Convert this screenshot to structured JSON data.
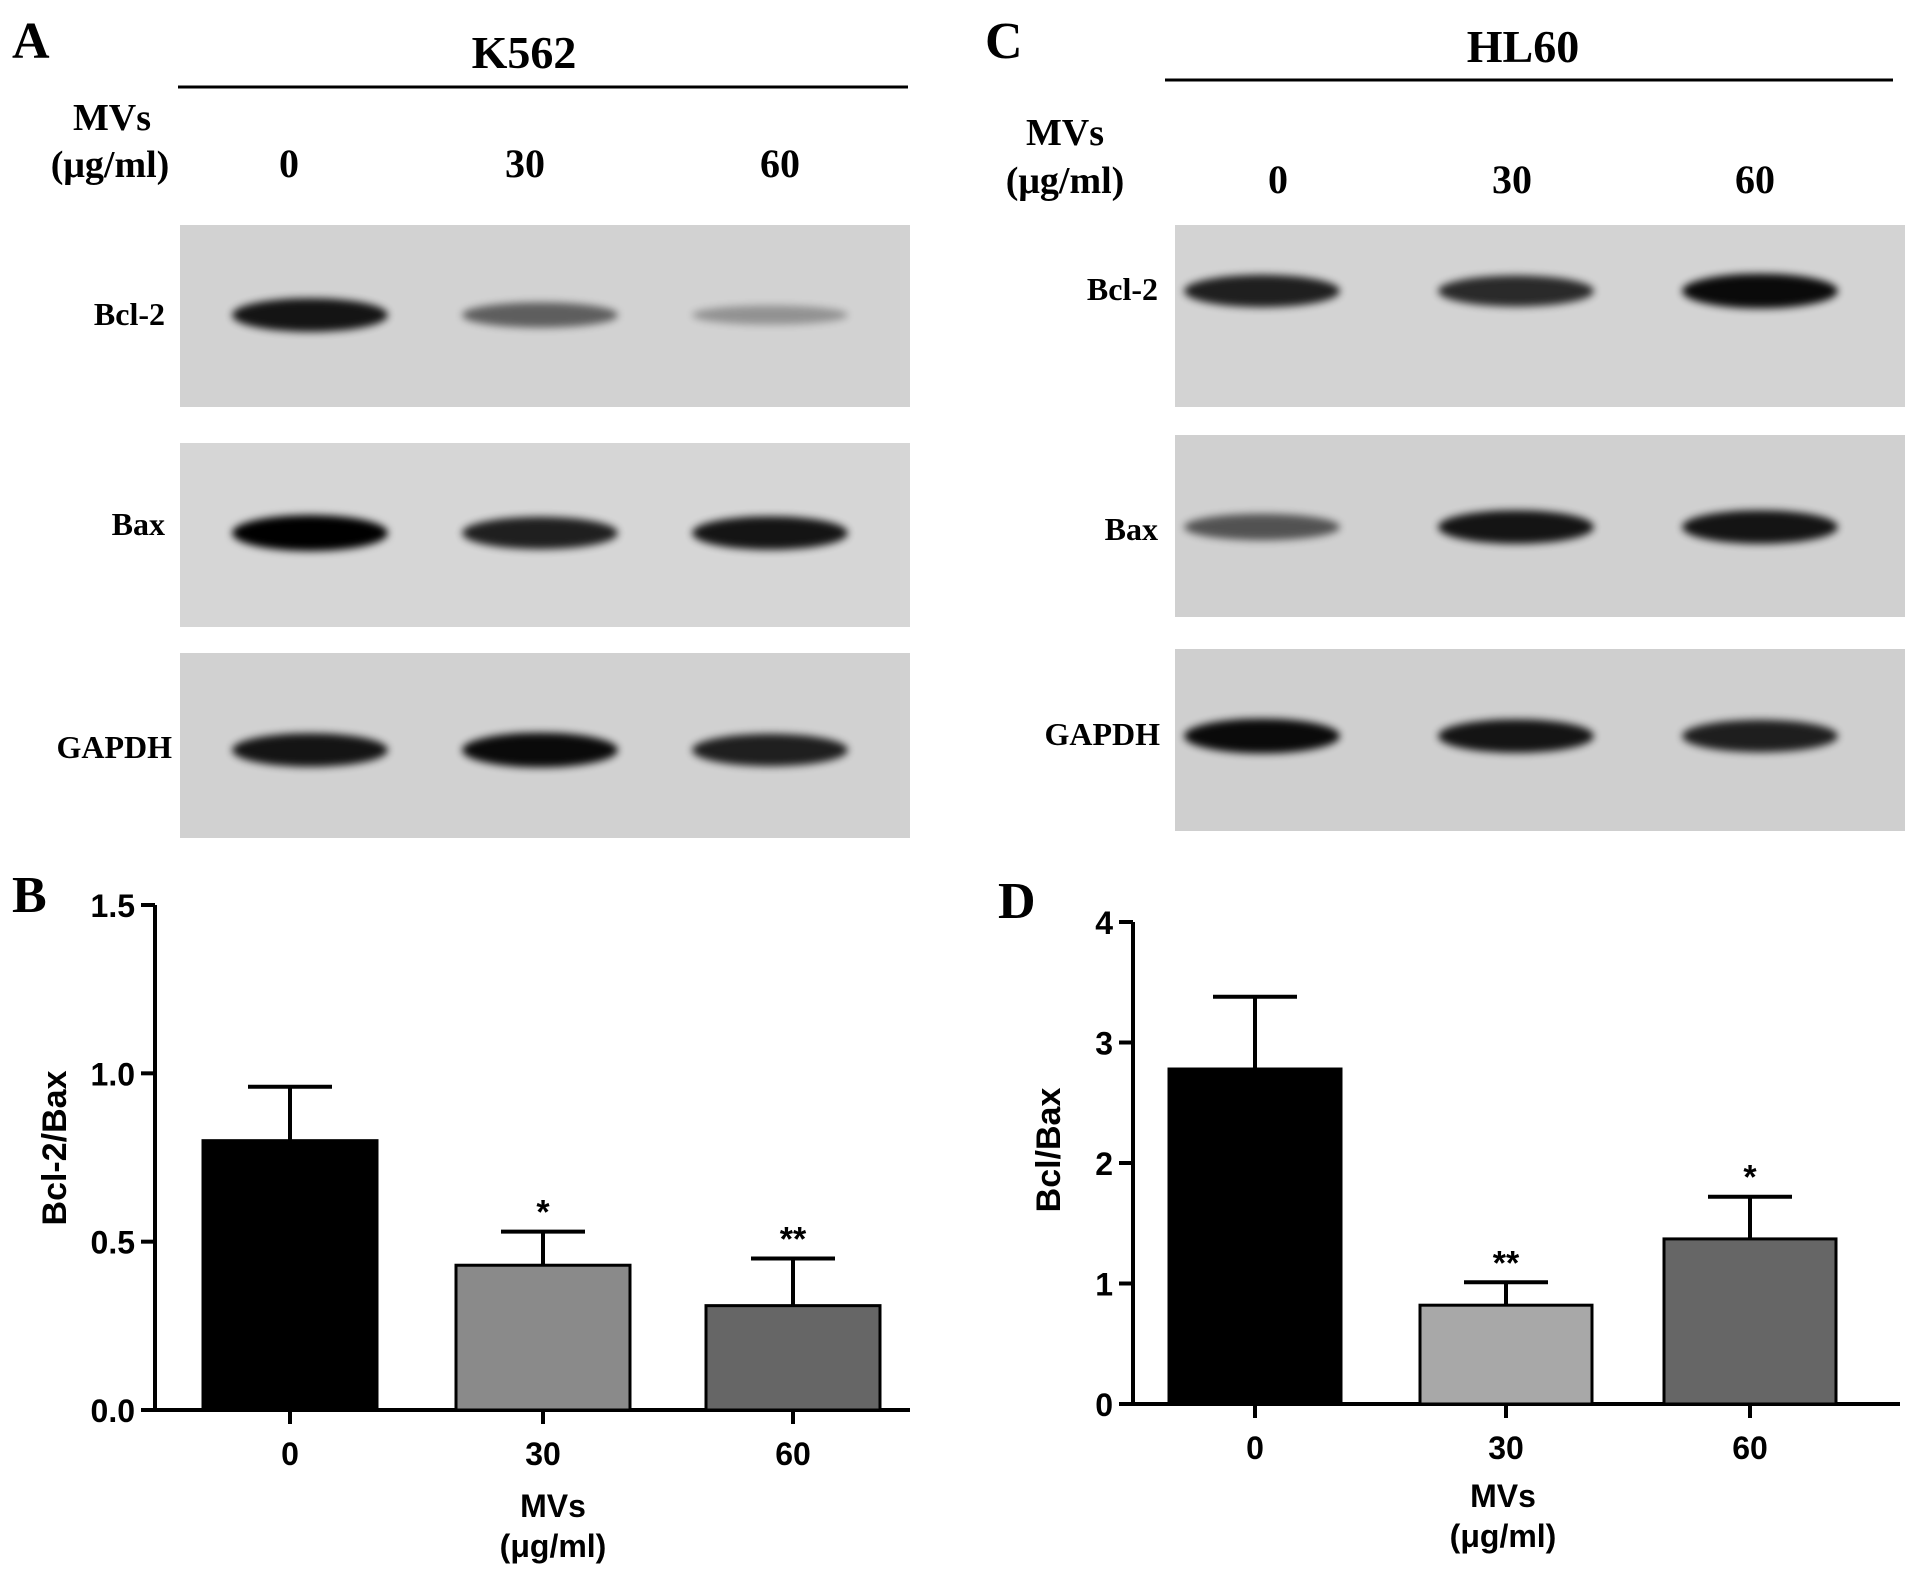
{
  "panels": {
    "A": {
      "letter": "A",
      "cell_line": "K562",
      "mvs_label_line1": "MVs",
      "mvs_label_line2": "(μg/ml)",
      "doses": [
        "0",
        "30",
        "60"
      ],
      "blots": [
        {
          "protein": "Bcl-2",
          "band_intensity": [
            0.9,
            0.55,
            0.3
          ]
        },
        {
          "protein": "Bax",
          "band_intensity": [
            1.0,
            0.85,
            0.9
          ]
        },
        {
          "protein": "GAPDH",
          "band_intensity": [
            0.9,
            0.95,
            0.85
          ]
        }
      ]
    },
    "C": {
      "letter": "C",
      "cell_line": "HL60",
      "mvs_label_line1": "MVs",
      "mvs_label_line2": "(μg/ml)",
      "doses": [
        "0",
        "30",
        "60"
      ],
      "blots": [
        {
          "protein": "Bcl-2",
          "band_intensity": [
            0.85,
            0.8,
            0.95
          ]
        },
        {
          "protein": "Bax",
          "band_intensity": [
            0.6,
            0.9,
            0.9
          ]
        },
        {
          "protein": "GAPDH",
          "band_intensity": [
            0.95,
            0.9,
            0.85
          ]
        }
      ]
    }
  },
  "chart_data": [
    {
      "panel": "B",
      "type": "bar",
      "categories": [
        "0",
        "30",
        "60"
      ],
      "values": [
        0.8,
        0.43,
        0.31
      ],
      "errors": [
        0.16,
        0.1,
        0.14
      ],
      "significance": [
        "",
        "*",
        "**"
      ],
      "bar_colors": [
        "#000000",
        "#8a8a8a",
        "#666666"
      ],
      "xlabel_line1": "MVs",
      "xlabel_line2": "(μg/ml)",
      "ylabel": "Bcl-2/Bax",
      "ylim": [
        0,
        1.5
      ],
      "yticks": [
        "0.0",
        "0.5",
        "1.0",
        "1.5"
      ]
    },
    {
      "panel": "D",
      "type": "bar",
      "categories": [
        "0",
        "30",
        "60"
      ],
      "values": [
        2.78,
        0.82,
        1.37
      ],
      "errors": [
        0.6,
        0.19,
        0.35
      ],
      "significance": [
        "",
        "**",
        "*"
      ],
      "bar_colors": [
        "#000000",
        "#a8a8a8",
        "#666666"
      ],
      "xlabel_line1": "MVs",
      "xlabel_line2": "(μg/ml)",
      "ylabel": "Bcl/Bax",
      "ylim": [
        0,
        4
      ],
      "yticks": [
        "0",
        "1",
        "2",
        "3",
        "4"
      ]
    }
  ]
}
